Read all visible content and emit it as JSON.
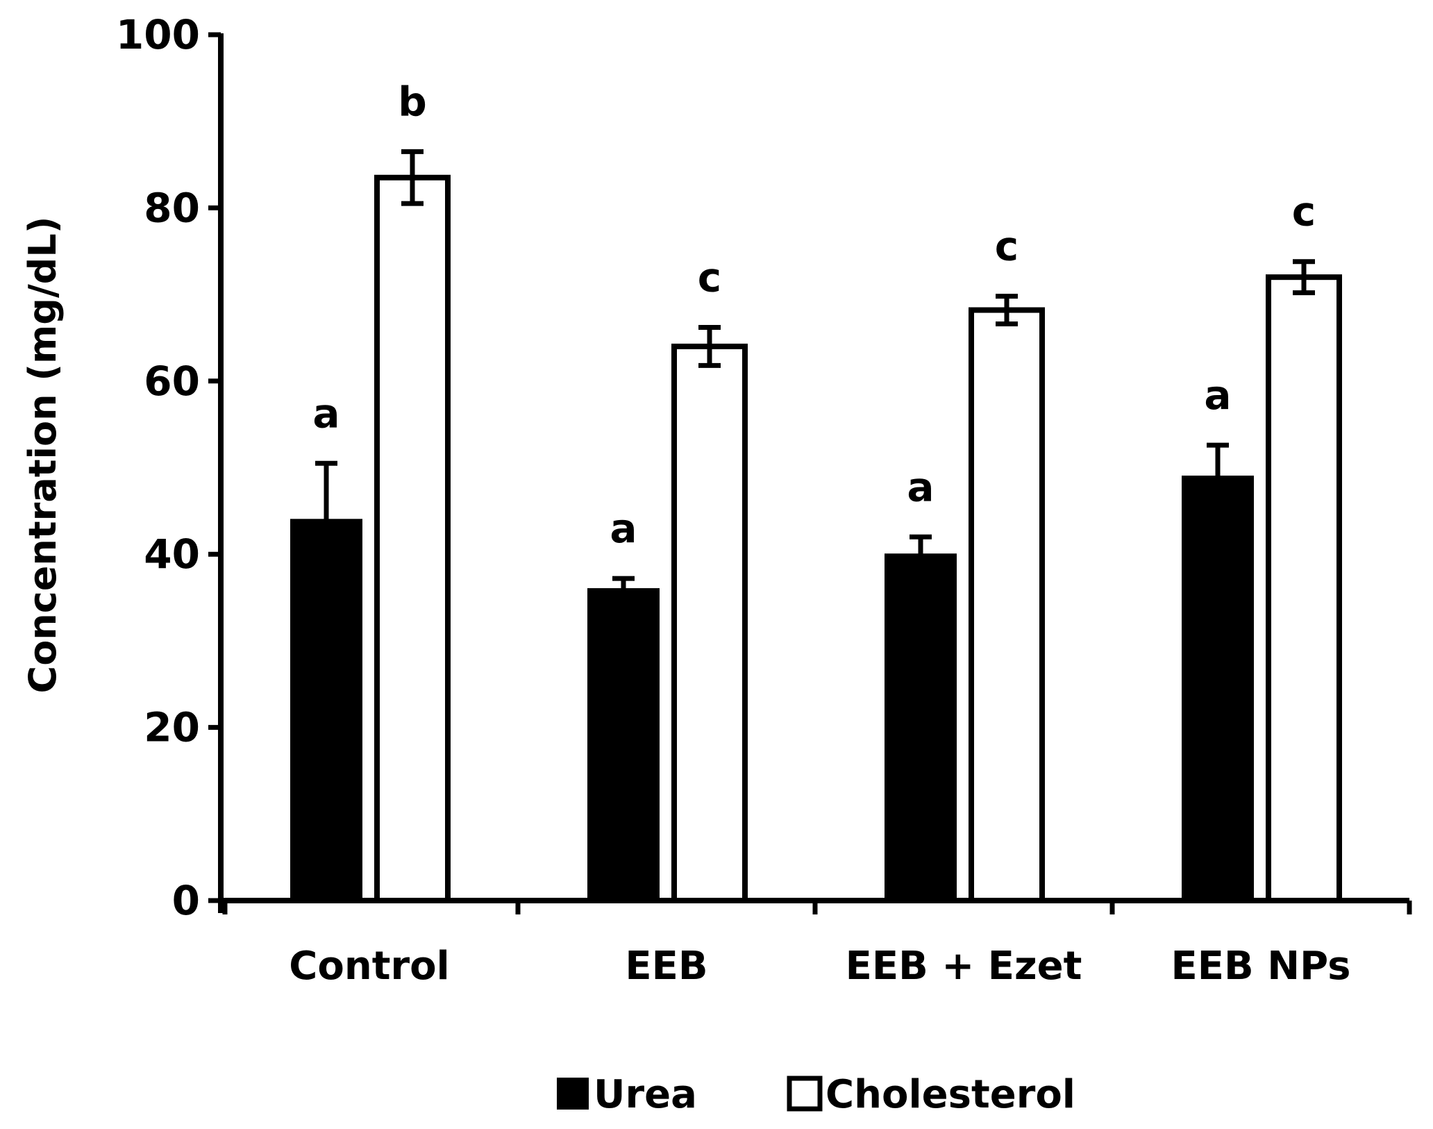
{
  "chart_data": {
    "type": "bar",
    "title": "",
    "xlabel": "",
    "ylabel": "Concentration (mg/dL)",
    "ylim": [
      0,
      100
    ],
    "yticks": [
      "0",
      "20",
      "40",
      "60",
      "80",
      "100"
    ],
    "grid": false,
    "legend_position": "bottom-center",
    "categories": [
      "Control",
      "EEB",
      "EEB + Ezet",
      "EEB NPs"
    ],
    "series": [
      {
        "name": "Urea",
        "fill": "#000000",
        "values": [
          44,
          36,
          40,
          49
        ],
        "errors": [
          6.5,
          1.2,
          2.0,
          3.6
        ],
        "significance": [
          "a",
          "a",
          "a",
          "a"
        ]
      },
      {
        "name": "Cholesterol",
        "fill": "#ffffff",
        "values": [
          83.5,
          64,
          68.2,
          72
        ],
        "errors": [
          3.0,
          2.2,
          1.6,
          1.8
        ],
        "significance": [
          "b",
          "c",
          "c",
          "c"
        ]
      }
    ]
  }
}
